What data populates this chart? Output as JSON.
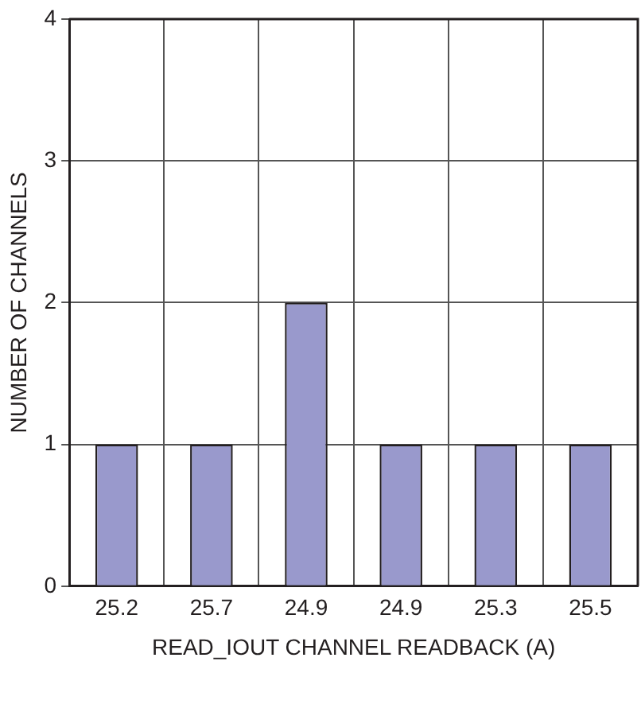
{
  "chart_data": {
    "type": "bar",
    "xlabel": "READ_IOUT CHANNEL READBACK (A)",
    "ylabel": "NUMBER OF CHANNELS",
    "categories": [
      "25.2",
      "25.7",
      "24.9",
      "24.9",
      "25.3",
      "25.5"
    ],
    "values": [
      1,
      1,
      2,
      1,
      1,
      1
    ],
    "color": "#9999cc",
    "ylim": [
      0,
      4
    ],
    "yticks": [
      0,
      1,
      2,
      3,
      4
    ],
    "grid": true
  }
}
